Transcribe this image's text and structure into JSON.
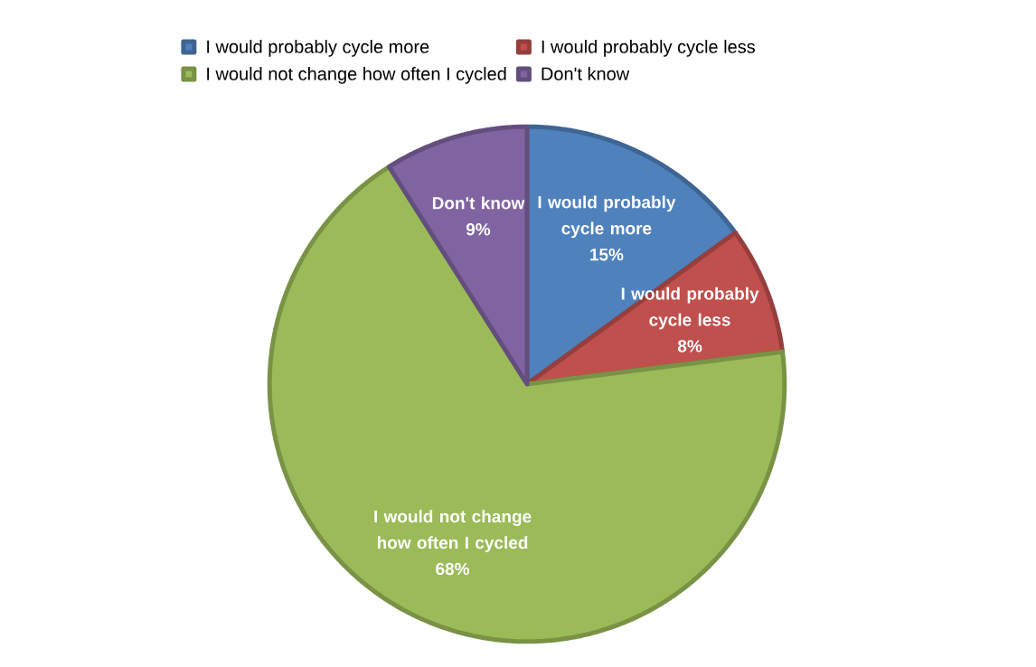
{
  "chart_data": {
    "type": "pie",
    "categories": [
      "I would probably cycle more",
      "I would probably cycle less",
      "I would not change how often I cycled",
      "Don't know"
    ],
    "values": [
      15,
      8,
      68,
      9
    ],
    "colors": [
      "#4f81bd",
      "#c0504d",
      "#9bbb59",
      "#8064a2"
    ],
    "value_labels": [
      "15%",
      "8%",
      "68%",
      "9%"
    ],
    "legend": "top"
  }
}
